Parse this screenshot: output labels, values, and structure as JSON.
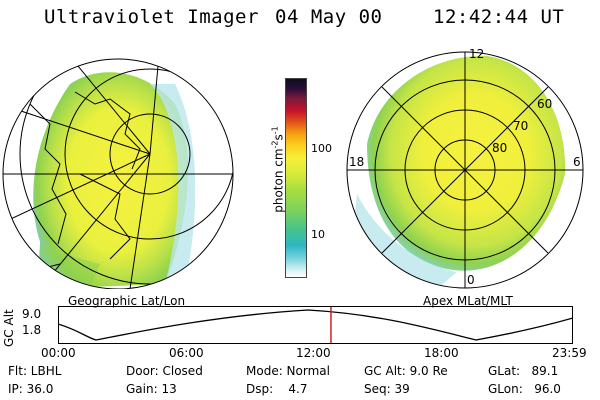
{
  "header": {
    "app_title": "Ultraviolet Imager",
    "date": "04 May 00",
    "time": "12:42:44 UT"
  },
  "colorbar": {
    "unit_prefix": "photon cm",
    "unit_exp1": "-2",
    "unit_mid": "s",
    "unit_exp2": "-1",
    "tick_100": "100",
    "tick_10": "10"
  },
  "geo_map": {
    "label": "Geographic Lat/Lon"
  },
  "apex_map": {
    "label": "Apex MLat/MLT",
    "mlt_labels": {
      "top": "12",
      "left": "18",
      "right": "6",
      "bottom": "0"
    },
    "lat_labels": {
      "l60": "60",
      "l70": "70",
      "l80": "80"
    }
  },
  "gc_alt": {
    "axis_label": "GC Alt",
    "max": "9.0",
    "min": "1.8",
    "current_fraction": 0.53
  },
  "timeline": {
    "ticks": [
      "00:00",
      "06:00",
      "12:00",
      "18:00",
      "23:59"
    ]
  },
  "info": {
    "flt": "Flt: LBHL",
    "ip": "IP: 36.0",
    "door": "Door: Closed",
    "gain": "Gain: 13",
    "mode": "Mode: Normal",
    "dsp": "Dsp:    4.7",
    "gcalt": "GC Alt: 9.0 Re",
    "seq": "Seq: 39",
    "glat": "GLat:   89.1",
    "glon": "GLon:   96.0"
  },
  "colors": {
    "aurora_yellow": "#f4ef3c",
    "aurora_green": "#9ad84a",
    "aurora_cyan": "#7fd3df",
    "time_marker": "#d02020"
  }
}
